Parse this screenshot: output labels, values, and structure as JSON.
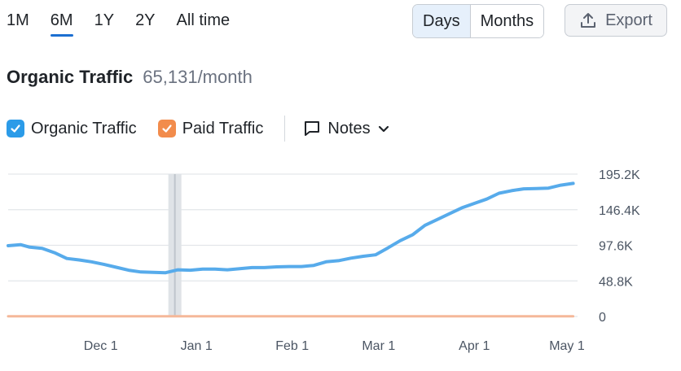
{
  "range_tabs": [
    {
      "label": "1M",
      "active": false
    },
    {
      "label": "6M",
      "active": true
    },
    {
      "label": "1Y",
      "active": false
    },
    {
      "label": "2Y",
      "active": false
    },
    {
      "label": "All time",
      "active": false
    }
  ],
  "period_toggle": {
    "days": "Days",
    "months": "Months",
    "selected": "Days"
  },
  "export": {
    "label": "Export",
    "icon": "upload-icon"
  },
  "heading": {
    "title": "Organic Traffic",
    "value": "65,131/month"
  },
  "legend": {
    "organic": {
      "label": "Organic Traffic",
      "checked": true,
      "color": "#2b9be8"
    },
    "paid": {
      "label": "Paid Traffic",
      "checked": true,
      "color": "#f28c4c"
    },
    "notes": {
      "label": "Notes",
      "icon": "comment-icon"
    }
  },
  "colors": {
    "accent": "#1c6fd1",
    "organic_line": "#57abeb",
    "paid_line": "#f5b899",
    "grid": "#e3e6ea"
  },
  "chart_data": {
    "type": "line",
    "x_tick_labels": [
      "Dec 1",
      "Jan 1",
      "Feb 1",
      "Mar 1",
      "Apr 1",
      "May 1"
    ],
    "y_tick_labels": [
      "195.2K",
      "146.4K",
      "97.6K",
      "48.8K",
      "0"
    ],
    "ylim": [
      0,
      195200
    ],
    "grid": true,
    "highlight_date": "Dec 25",
    "series": [
      {
        "key": "organic",
        "x": [
          "Nov 1",
          "Nov 5",
          "Nov 8",
          "Nov 12",
          "Nov 16",
          "Nov 20",
          "Nov 24",
          "Nov 28",
          "Dec 2",
          "Dec 6",
          "Dec 10",
          "Dec 14",
          "Dec 18",
          "Dec 22",
          "Dec 26",
          "Dec 30",
          "Jan 3",
          "Jan 7",
          "Jan 11",
          "Jan 15",
          "Jan 19",
          "Jan 23",
          "Jan 27",
          "Jan 31",
          "Feb 4",
          "Feb 8",
          "Feb 12",
          "Feb 16",
          "Feb 20",
          "Feb 24",
          "Feb 28",
          "Mar 4",
          "Mar 8",
          "Mar 12",
          "Mar 16",
          "Mar 20",
          "Mar 24",
          "Mar 28",
          "Apr 1",
          "Apr 5",
          "Apr 9",
          "Apr 13",
          "Apr 17",
          "Apr 21",
          "Apr 25",
          "Apr 29",
          "May 3"
        ],
        "values": [
          97000,
          98500,
          95000,
          93500,
          87500,
          79500,
          77500,
          75000,
          71500,
          67500,
          63500,
          61000,
          60500,
          60000,
          64000,
          63500,
          65000,
          65000,
          64000,
          65500,
          67000,
          67000,
          68000,
          68500,
          68500,
          70000,
          75000,
          76500,
          80000,
          82500,
          84500,
          94000,
          104000,
          112000,
          125000,
          133000,
          141000,
          149000,
          155000,
          161000,
          169000,
          172500,
          175000,
          175500,
          176000,
          180000,
          182500
        ]
      },
      {
        "key": "paid",
        "x": [
          "Nov 1",
          "May 3"
        ],
        "values": [
          200,
          200
        ]
      }
    ]
  }
}
